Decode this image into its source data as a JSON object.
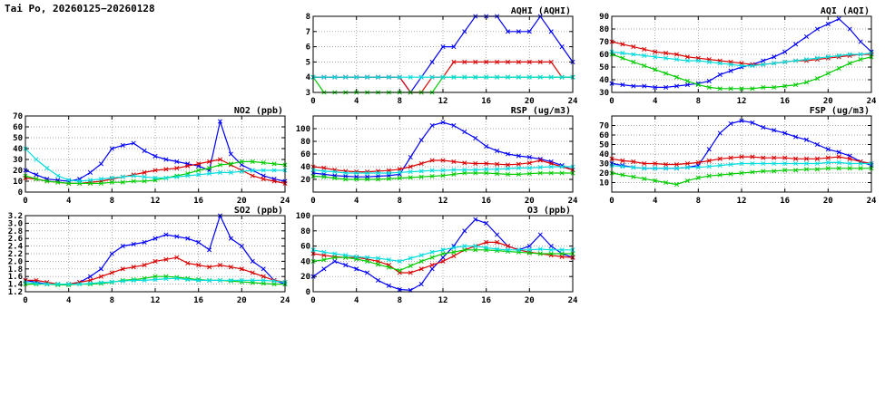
{
  "page": {
    "title": "Tai Po, 20260125−20260128"
  },
  "colors": {
    "blue": "#0000ff",
    "red": "#dd0000",
    "green": "#00cc00",
    "cyan": "#00dddd"
  },
  "chart_data": [
    {
      "type": "line",
      "title": "AQHI (AQHI)",
      "x": [
        0,
        1,
        2,
        3,
        4,
        5,
        6,
        7,
        8,
        9,
        10,
        11,
        12,
        13,
        14,
        15,
        16,
        17,
        18,
        19,
        20,
        21,
        22,
        23,
        24
      ],
      "xlim": [
        0,
        24
      ],
      "xticks": [
        0,
        4,
        8,
        12,
        16,
        20,
        24
      ],
      "ylim": [
        3,
        8
      ],
      "yticks": [
        3,
        4,
        5,
        6,
        7,
        8
      ],
      "grid": true,
      "legend": null,
      "series": [
        {
          "name": "blue",
          "color": "#0000ff",
          "values": [
            4,
            4,
            4,
            4,
            4,
            4,
            4,
            4,
            4,
            3,
            4,
            5,
            6,
            6,
            7,
            8,
            8,
            8,
            7,
            7,
            7,
            8,
            7,
            6,
            5
          ]
        },
        {
          "name": "red",
          "color": "#dd0000",
          "values": [
            4,
            4,
            4,
            4,
            4,
            4,
            4,
            4,
            4,
            3,
            3,
            4,
            4,
            5,
            5,
            5,
            5,
            5,
            5,
            5,
            5,
            5,
            5,
            4,
            4
          ]
        },
        {
          "name": "green",
          "color": "#00cc00",
          "values": [
            4,
            3,
            3,
            3,
            3,
            3,
            3,
            3,
            3,
            3,
            3,
            3,
            4,
            4,
            4,
            4,
            4,
            4,
            4,
            4,
            4,
            4,
            4,
            4,
            4
          ]
        },
        {
          "name": "cyan",
          "color": "#00dddd",
          "values": [
            4,
            4,
            4,
            4,
            4,
            4,
            4,
            4,
            4,
            4,
            4,
            4,
            4,
            4,
            4,
            4,
            4,
            4,
            4,
            4,
            4,
            4,
            4,
            4,
            4
          ]
        }
      ]
    },
    {
      "type": "line",
      "title": "AQI (AQI)",
      "x": [
        0,
        1,
        2,
        3,
        4,
        5,
        6,
        7,
        8,
        9,
        10,
        11,
        12,
        13,
        14,
        15,
        16,
        17,
        18,
        19,
        20,
        21,
        22,
        23,
        24
      ],
      "xlim": [
        0,
        24
      ],
      "xticks": [
        0,
        4,
        8,
        12,
        16,
        20,
        24
      ],
      "ylim": [
        30,
        90
      ],
      "yticks": [
        30,
        40,
        50,
        60,
        70,
        80,
        90
      ],
      "grid": true,
      "legend": null,
      "series": [
        {
          "name": "blue",
          "color": "#0000ff",
          "values": [
            37,
            36,
            35,
            35,
            34,
            34,
            35,
            36,
            37,
            39,
            44,
            47,
            50,
            52,
            55,
            58,
            62,
            68,
            74,
            80,
            84,
            88,
            80,
            70,
            62
          ]
        },
        {
          "name": "red",
          "color": "#dd0000",
          "values": [
            70,
            68,
            66,
            64,
            62,
            61,
            60,
            58,
            57,
            56,
            55,
            54,
            53,
            52,
            52,
            53,
            54,
            55,
            55,
            56,
            57,
            58,
            59,
            60,
            60
          ]
        },
        {
          "name": "green",
          "color": "#00cc00",
          "values": [
            60,
            57,
            54,
            51,
            48,
            45,
            42,
            39,
            36,
            34,
            33,
            33,
            33,
            33,
            34,
            34,
            35,
            36,
            38,
            41,
            45,
            49,
            53,
            56,
            58
          ]
        },
        {
          "name": "cyan",
          "color": "#00dddd",
          "values": [
            62,
            61,
            60,
            59,
            58,
            57,
            56,
            55,
            55,
            54,
            53,
            52,
            51,
            51,
            52,
            53,
            54,
            55,
            56,
            57,
            58,
            59,
            60,
            60,
            61
          ]
        }
      ]
    },
    {
      "type": "line",
      "title": "NO2 (ppb)",
      "x": [
        0,
        1,
        2,
        3,
        4,
        5,
        6,
        7,
        8,
        9,
        10,
        11,
        12,
        13,
        14,
        15,
        16,
        17,
        18,
        19,
        20,
        21,
        22,
        23,
        24
      ],
      "xlim": [
        0,
        24
      ],
      "xticks": [
        0,
        4,
        8,
        12,
        16,
        20,
        24
      ],
      "ylim": [
        0,
        70
      ],
      "yticks": [
        0,
        10,
        20,
        30,
        40,
        50,
        60,
        70
      ],
      "grid": true,
      "legend": null,
      "series": [
        {
          "name": "blue",
          "color": "#0000ff",
          "values": [
            20,
            16,
            12,
            11,
            10,
            12,
            18,
            26,
            40,
            43,
            45,
            38,
            33,
            30,
            28,
            26,
            24,
            20,
            65,
            35,
            25,
            20,
            15,
            12,
            10
          ]
        },
        {
          "name": "red",
          "color": "#dd0000",
          "values": [
            13,
            12,
            10,
            9,
            8,
            8,
            9,
            10,
            12,
            14,
            16,
            18,
            20,
            21,
            22,
            24,
            26,
            28,
            30,
            25,
            20,
            15,
            12,
            10,
            8
          ]
        },
        {
          "name": "green",
          "color": "#00cc00",
          "values": [
            15,
            12,
            10,
            9,
            8,
            8,
            8,
            8,
            9,
            9,
            10,
            10,
            11,
            13,
            15,
            17,
            20,
            22,
            25,
            26,
            28,
            28,
            27,
            26,
            25
          ]
        },
        {
          "name": "cyan",
          "color": "#00dddd",
          "values": [
            40,
            30,
            22,
            15,
            11,
            10,
            11,
            12,
            13,
            14,
            15,
            14,
            13,
            13,
            14,
            15,
            16,
            17,
            18,
            18,
            19,
            20,
            20,
            20,
            20
          ]
        }
      ]
    },
    {
      "type": "line",
      "title": "RSP (ug/m3)",
      "x": [
        0,
        1,
        2,
        3,
        4,
        5,
        6,
        7,
        8,
        9,
        10,
        11,
        12,
        13,
        14,
        15,
        16,
        17,
        18,
        19,
        20,
        21,
        22,
        23,
        24
      ],
      "xlim": [
        0,
        24
      ],
      "xticks": [
        0,
        4,
        8,
        12,
        16,
        20,
        24
      ],
      "ylim": [
        0,
        120
      ],
      "yticks": [
        20,
        40,
        60,
        80,
        100
      ],
      "grid": true,
      "legend": null,
      "series": [
        {
          "name": "blue",
          "color": "#0000ff",
          "values": [
            30,
            28,
            26,
            25,
            24,
            24,
            25,
            26,
            28,
            55,
            82,
            105,
            110,
            105,
            95,
            85,
            72,
            65,
            60,
            57,
            55,
            52,
            48,
            42,
            35
          ]
        },
        {
          "name": "red",
          "color": "#dd0000",
          "values": [
            40,
            38,
            35,
            33,
            32,
            32,
            33,
            34,
            36,
            40,
            45,
            50,
            50,
            48,
            46,
            45,
            45,
            44,
            43,
            44,
            46,
            50,
            45,
            40,
            35
          ]
        },
        {
          "name": "green",
          "color": "#00cc00",
          "values": [
            25,
            24,
            22,
            20,
            20,
            20,
            20,
            21,
            22,
            23,
            24,
            25,
            26,
            28,
            30,
            30,
            30,
            29,
            28,
            28,
            29,
            30,
            30,
            30,
            30
          ]
        },
        {
          "name": "cyan",
          "color": "#00dddd",
          "values": [
            35,
            33,
            32,
            30,
            30,
            30,
            30,
            30,
            31,
            32,
            33,
            34,
            34,
            35,
            35,
            35,
            36,
            36,
            37,
            38,
            38,
            39,
            40,
            40,
            40
          ]
        }
      ]
    },
    {
      "type": "line",
      "title": "FSP (ug/m3)",
      "x": [
        0,
        1,
        2,
        3,
        4,
        5,
        6,
        7,
        8,
        9,
        10,
        11,
        12,
        13,
        14,
        15,
        16,
        17,
        18,
        19,
        20,
        21,
        22,
        23,
        24
      ],
      "xlim": [
        0,
        24
      ],
      "xticks": [
        0,
        4,
        8,
        12,
        16,
        20,
        24
      ],
      "ylim": [
        0,
        80
      ],
      "yticks": [
        10,
        20,
        30,
        40,
        50,
        60,
        70
      ],
      "grid": true,
      "legend": null,
      "series": [
        {
          "name": "blue",
          "color": "#0000ff",
          "values": [
            30,
            28,
            26,
            25,
            25,
            25,
            25,
            26,
            28,
            45,
            62,
            72,
            75,
            73,
            68,
            65,
            62,
            58,
            55,
            50,
            45,
            42,
            38,
            32,
            28
          ]
        },
        {
          "name": "red",
          "color": "#dd0000",
          "values": [
            35,
            33,
            32,
            30,
            30,
            29,
            29,
            30,
            31,
            33,
            35,
            36,
            37,
            37,
            36,
            36,
            36,
            35,
            35,
            35,
            36,
            37,
            35,
            32,
            30
          ]
        },
        {
          "name": "green",
          "color": "#00cc00",
          "values": [
            20,
            18,
            16,
            14,
            12,
            10,
            8,
            12,
            15,
            17,
            18,
            19,
            20,
            21,
            22,
            22,
            23,
            23,
            24,
            24,
            25,
            25,
            25,
            25,
            25
          ]
        },
        {
          "name": "cyan",
          "color": "#00dddd",
          "values": [
            28,
            27,
            26,
            25,
            25,
            25,
            25,
            26,
            26,
            27,
            28,
            29,
            30,
            30,
            30,
            30,
            30,
            30,
            30,
            30,
            31,
            31,
            30,
            30,
            30
          ]
        }
      ]
    },
    {
      "type": "line",
      "title": "SO2 (ppb)",
      "x": [
        0,
        1,
        2,
        3,
        4,
        5,
        6,
        7,
        8,
        9,
        10,
        11,
        12,
        13,
        14,
        15,
        16,
        17,
        18,
        19,
        20,
        21,
        22,
        23,
        24
      ],
      "xlim": [
        0,
        24
      ],
      "xticks": [
        0,
        4,
        8,
        12,
        16,
        20,
        24
      ],
      "ylim": [
        1.2,
        3.2
      ],
      "yticks": [
        1.2,
        1.4,
        1.6,
        1.8,
        2.0,
        2.2,
        2.4,
        2.6,
        2.8,
        3.0,
        3.2
      ],
      "ytick_labels": [
        "1.2",
        "1.4",
        "1.6",
        "1.8",
        "2.0",
        "2.2",
        "2.4",
        "2.6",
        "2.8",
        "3.0",
        "3.2"
      ],
      "grid": true,
      "legend": null,
      "series": [
        {
          "name": "blue",
          "color": "#0000ff",
          "values": [
            1.5,
            1.45,
            1.4,
            1.4,
            1.4,
            1.45,
            1.6,
            1.8,
            2.2,
            2.4,
            2.45,
            2.5,
            2.6,
            2.7,
            2.65,
            2.6,
            2.5,
            2.3,
            3.2,
            2.6,
            2.4,
            2.0,
            1.8,
            1.5,
            1.4
          ]
        },
        {
          "name": "red",
          "color": "#dd0000",
          "values": [
            1.5,
            1.5,
            1.45,
            1.4,
            1.4,
            1.45,
            1.5,
            1.6,
            1.7,
            1.8,
            1.85,
            1.9,
            2.0,
            2.05,
            2.1,
            1.95,
            1.9,
            1.85,
            1.9,
            1.85,
            1.8,
            1.7,
            1.6,
            1.5,
            1.45
          ]
        },
        {
          "name": "green",
          "color": "#00cc00",
          "values": [
            1.4,
            1.4,
            1.4,
            1.38,
            1.38,
            1.4,
            1.4,
            1.42,
            1.45,
            1.5,
            1.52,
            1.55,
            1.6,
            1.6,
            1.58,
            1.55,
            1.52,
            1.5,
            1.5,
            1.48,
            1.46,
            1.44,
            1.42,
            1.4,
            1.4
          ]
        },
        {
          "name": "cyan",
          "color": "#00dddd",
          "values": [
            1.45,
            1.42,
            1.4,
            1.4,
            1.4,
            1.4,
            1.42,
            1.44,
            1.46,
            1.48,
            1.5,
            1.5,
            1.52,
            1.54,
            1.55,
            1.52,
            1.5,
            1.5,
            1.5,
            1.5,
            1.5,
            1.5,
            1.5,
            1.48,
            1.45
          ]
        }
      ]
    },
    {
      "type": "line",
      "title": "O3 (ppb)",
      "x": [
        0,
        1,
        2,
        3,
        4,
        5,
        6,
        7,
        8,
        9,
        10,
        11,
        12,
        13,
        14,
        15,
        16,
        17,
        18,
        19,
        20,
        21,
        22,
        23,
        24
      ],
      "xlim": [
        0,
        24
      ],
      "xticks": [
        0,
        4,
        8,
        12,
        16,
        20,
        24
      ],
      "ylim": [
        0,
        100
      ],
      "yticks": [
        0,
        20,
        40,
        60,
        80,
        100
      ],
      "grid": true,
      "legend": null,
      "series": [
        {
          "name": "blue",
          "color": "#0000ff",
          "values": [
            20,
            30,
            40,
            35,
            30,
            25,
            15,
            8,
            3,
            2,
            10,
            30,
            45,
            60,
            80,
            95,
            90,
            75,
            60,
            55,
            60,
            75,
            60,
            50,
            45
          ]
        },
        {
          "name": "red",
          "color": "#dd0000",
          "values": [
            50,
            48,
            46,
            45,
            45,
            43,
            40,
            35,
            25,
            25,
            30,
            35,
            40,
            47,
            55,
            60,
            65,
            65,
            60,
            55,
            52,
            50,
            48,
            46,
            45
          ]
        },
        {
          "name": "green",
          "color": "#00cc00",
          "values": [
            40,
            42,
            45,
            45,
            43,
            40,
            36,
            32,
            28,
            34,
            40,
            45,
            50,
            52,
            55,
            55,
            55,
            54,
            53,
            52,
            51,
            50,
            50,
            50,
            50
          ]
        },
        {
          "name": "cyan",
          "color": "#00dddd",
          "values": [
            55,
            52,
            50,
            48,
            46,
            45,
            44,
            42,
            40,
            44,
            48,
            52,
            55,
            58,
            60,
            60,
            58,
            56,
            55,
            55,
            55,
            56,
            55,
            55,
            55
          ]
        }
      ]
    }
  ]
}
